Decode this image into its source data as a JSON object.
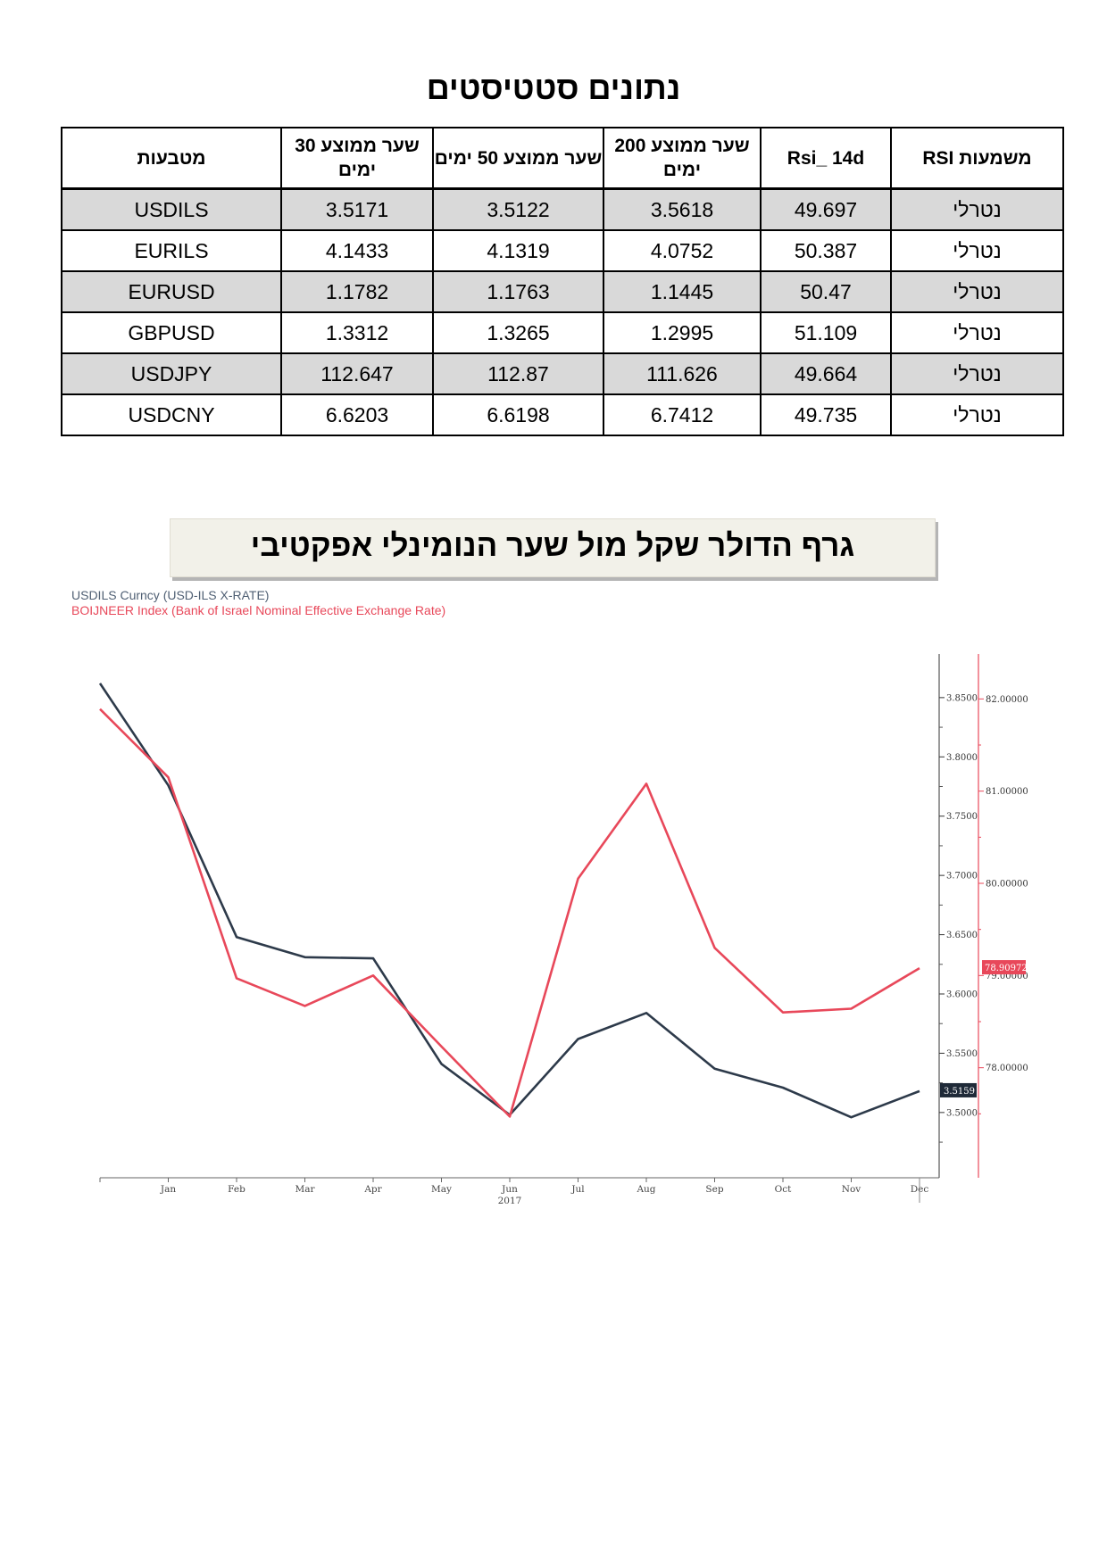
{
  "page_title": "נתונים סטטיסטים",
  "table": {
    "headers": {
      "rsi_meaning": "משמעות RSI",
      "rsi": "Rsi_ 14d",
      "ma200": "שער ממוצע 200 ימים",
      "ma50": "שער ממוצע 50 ימים",
      "ma30": "שער ממוצע 30 ימים",
      "currency": "מטבעות"
    },
    "rows": [
      {
        "currency": "USDILS",
        "ma30": "3.5171",
        "ma50": "3.5122",
        "ma200": "3.5618",
        "rsi": "49.697",
        "rsi_meaning": "נטרלי"
      },
      {
        "currency": "EURILS",
        "ma30": "4.1433",
        "ma50": "4.1319",
        "ma200": "4.0752",
        "rsi": "50.387",
        "rsi_meaning": "נטרלי"
      },
      {
        "currency": "EURUSD",
        "ma30": "1.1782",
        "ma50": "1.1763",
        "ma200": "1.1445",
        "rsi": "50.47",
        "rsi_meaning": "נטרלי"
      },
      {
        "currency": "GBPUSD",
        "ma30": "1.3312",
        "ma50": "1.3265",
        "ma200": "1.2995",
        "rsi": "51.109",
        "rsi_meaning": "נטרלי"
      },
      {
        "currency": "USDJPY",
        "ma30": "112.647",
        "ma50": "112.87",
        "ma200": "111.626",
        "rsi": "49.664",
        "rsi_meaning": "נטרלי"
      },
      {
        "currency": "USDCNY",
        "ma30": "6.6203",
        "ma50": "6.6198",
        "ma200": "6.7412",
        "rsi": "49.735",
        "rsi_meaning": "נטרלי"
      }
    ]
  },
  "chart_title": "גרף הדולר שקל מול שער הנומינלי אפקטיבי",
  "chart_data": {
    "type": "line",
    "x": [
      "",
      "Jan",
      "Feb",
      "Mar",
      "Apr",
      "May",
      "Jun",
      "Jul",
      "Aug",
      "Sep",
      "Oct",
      "Nov",
      "Dec"
    ],
    "x_labels": [
      "Jan",
      "Feb",
      "Mar",
      "Apr",
      "May",
      "Jun",
      "Jul",
      "Aug",
      "Sep",
      "Oct",
      "Nov",
      "Dec"
    ],
    "x_year_label": "2017",
    "series": [
      {
        "name": "USDILS Curncy (USD-ILS X-RATE)",
        "axis": "left",
        "color": "#2d3a4a",
        "values": [
          3.862,
          3.776,
          3.648,
          3.631,
          3.63,
          3.541,
          3.498,
          3.562,
          3.584,
          3.537,
          3.521,
          3.496,
          3.518
        ],
        "last_value_label": "3.5159"
      },
      {
        "name": "BOIJNEER Index (Bank of Israel Nominal Effective Exchange Rate)",
        "axis": "right",
        "color": "#e8485a",
        "values": [
          81.89,
          81.15,
          78.97,
          78.67,
          79.0,
          78.23,
          77.47,
          80.05,
          81.08,
          79.3,
          78.6,
          78.64,
          79.08
        ],
        "last_value_label": "78.90972"
      }
    ],
    "y_left": {
      "ticks": [
        "3.8500",
        "3.8000",
        "3.7500",
        "3.7000",
        "3.6500",
        "3.6000",
        "3.5500",
        "3.5000"
      ],
      "tick_values": [
        3.85,
        3.8,
        3.75,
        3.7,
        3.65,
        3.6,
        3.55,
        3.5
      ],
      "range": [
        3.46,
        3.88
      ]
    },
    "y_right": {
      "ticks": [
        "82.00000",
        "81.00000",
        "80.00000",
        "79.00000",
        "78.00000"
      ],
      "tick_values": [
        82,
        81,
        80,
        79,
        78
      ],
      "range": [
        77.0,
        82.4
      ]
    },
    "colors": {
      "left_series": "#2d3a4a",
      "right_series": "#e8485a",
      "axis": "#555555"
    }
  }
}
